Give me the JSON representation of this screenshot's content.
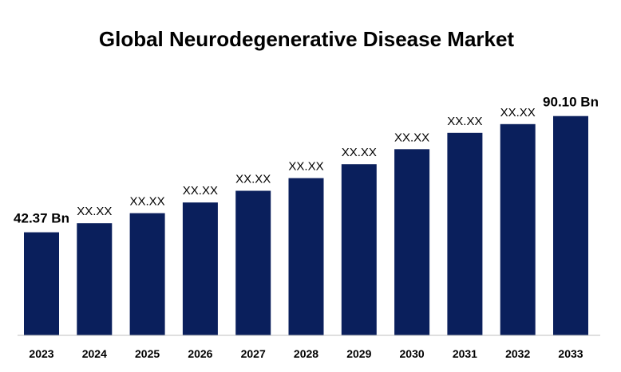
{
  "chart_data": {
    "type": "bar",
    "title": "Global Neurodegenerative Disease Market",
    "categories": [
      "2023",
      "2024",
      "2025",
      "2026",
      "2027",
      "2028",
      "2029",
      "2030",
      "2031",
      "2032",
      "2033"
    ],
    "values": [
      42.37,
      46.1,
      50.2,
      54.6,
      59.4,
      64.6,
      70.3,
      76.5,
      83.2,
      86.8,
      90.1
    ],
    "data_labels": [
      "42.37 Bn",
      "XX.XX",
      "XX.XX",
      "XX.XX",
      "XX.XX",
      "XX.XX",
      "XX.XX",
      "XX.XX",
      "XX.XX",
      "XX.XX",
      "90.10 Bn"
    ],
    "ylim": [
      0,
      100
    ],
    "grid": false,
    "bar_color": "#0a1f5c",
    "axis_color": "#bfbfbf"
  }
}
